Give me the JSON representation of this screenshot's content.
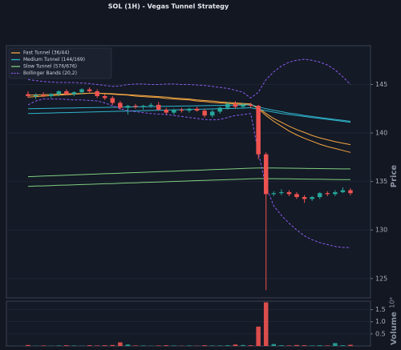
{
  "chart_data": {
    "type": "candlestick",
    "title": "SOL (1H) - Vegas Tunnel Strategy",
    "y_label": "Price",
    "ylim": [
      123,
      149
    ],
    "yticks": [
      125,
      130,
      135,
      140,
      145
    ],
    "grid": true,
    "up_color": "#26a69a",
    "down_color": "#ef5350",
    "legend": "upper left",
    "candles": {
      "open": [
        144.0,
        143.8,
        143.9,
        143.8,
        144.0,
        144.3,
        144.0,
        144.2,
        144.5,
        144.3,
        143.8,
        143.6,
        143.1,
        142.6,
        142.8,
        142.7,
        142.8,
        142.9,
        142.4,
        142.1,
        142.4,
        142.3,
        142.5,
        142.3,
        141.8,
        142.2,
        142.6,
        143.0,
        142.7,
        142.9,
        142.8,
        137.8,
        133.7,
        133.8,
        133.9,
        133.7,
        133.4,
        133.2,
        133.4,
        133.8,
        133.7,
        133.9,
        134.1
      ],
      "high": [
        144.3,
        144.1,
        144.2,
        144.1,
        144.4,
        144.5,
        144.3,
        144.6,
        144.7,
        144.5,
        144.0,
        143.8,
        143.3,
        142.9,
        143.0,
        142.9,
        143.1,
        143.2,
        142.6,
        142.5,
        142.6,
        142.6,
        142.7,
        142.5,
        142.4,
        142.7,
        143.2,
        143.3,
        143.1,
        143.1,
        142.9,
        138.0,
        134.0,
        134.2,
        134.1,
        133.9,
        133.6,
        133.5,
        133.9,
        134.0,
        134.1,
        134.4,
        134.3
      ],
      "low": [
        143.6,
        143.5,
        143.7,
        143.6,
        143.8,
        144.0,
        143.8,
        144.0,
        144.2,
        143.6,
        143.4,
        142.9,
        142.4,
        141.9,
        142.5,
        142.4,
        142.6,
        142.3,
        141.9,
        141.9,
        142.1,
        142.1,
        142.2,
        141.6,
        141.6,
        142.0,
        142.4,
        142.5,
        142.5,
        142.6,
        137.3,
        123.8,
        133.5,
        133.6,
        133.5,
        133.2,
        132.8,
        133.0,
        133.2,
        133.5,
        133.5,
        133.8,
        133.6
      ],
      "close": [
        143.8,
        143.9,
        143.8,
        144.0,
        144.3,
        144.0,
        144.2,
        144.5,
        144.3,
        143.8,
        143.6,
        143.1,
        142.6,
        142.8,
        142.7,
        142.8,
        142.9,
        142.4,
        142.1,
        142.4,
        142.3,
        142.5,
        142.3,
        141.8,
        142.2,
        142.6,
        143.0,
        142.7,
        142.9,
        142.8,
        137.8,
        133.7,
        133.8,
        133.9,
        133.7,
        133.4,
        133.2,
        133.4,
        133.8,
        133.7,
        133.9,
        134.1,
        133.8
      ]
    },
    "indicators": [
      {
        "name": "Fast Tunnel (36/44)",
        "color": "#f5a742",
        "dashed": false,
        "values": [
          [
            143.7,
            143.75,
            143.8,
            143.85,
            143.9,
            143.95,
            144.0,
            144.05,
            144.1,
            144.1,
            144.05,
            144.0,
            143.95,
            143.9,
            143.8,
            143.75,
            143.7,
            143.65,
            143.55,
            143.5,
            143.45,
            143.4,
            143.3,
            143.25,
            143.15,
            143.1,
            143.05,
            143.0,
            142.95,
            142.9,
            142.6,
            142.0,
            141.5,
            141.1,
            140.7,
            140.35,
            140.05,
            139.75,
            139.5,
            139.3,
            139.1,
            138.95,
            138.8
          ],
          [
            143.9,
            143.92,
            143.95,
            143.97,
            144.0,
            144.02,
            144.05,
            144.07,
            144.1,
            144.1,
            144.08,
            144.05,
            144.0,
            143.95,
            143.9,
            143.85,
            143.8,
            143.75,
            143.7,
            143.6,
            143.55,
            143.5,
            143.4,
            143.35,
            143.3,
            143.2,
            143.15,
            143.1,
            143.05,
            143.0,
            142.5,
            141.8,
            141.2,
            140.7,
            140.2,
            139.8,
            139.45,
            139.15,
            138.85,
            138.6,
            138.4,
            138.2,
            138.0
          ]
        ]
      },
      {
        "name": "Medium Tunnel (144/169)",
        "color": "#2fb4cc",
        "dashed": false,
        "values": [
          [
            142.5,
            142.51,
            142.53,
            142.54,
            142.56,
            142.57,
            142.58,
            142.6,
            142.61,
            142.62,
            142.64,
            142.65,
            142.67,
            142.68,
            142.69,
            142.71,
            142.72,
            142.73,
            142.75,
            142.76,
            142.78,
            142.79,
            142.8,
            142.82,
            142.83,
            142.84,
            142.86,
            142.87,
            142.88,
            142.9,
            142.7,
            142.5,
            142.35,
            142.2,
            142.05,
            141.95,
            141.8,
            141.7,
            141.6,
            141.5,
            141.4,
            141.3,
            141.2
          ],
          [
            142.0,
            142.02,
            142.04,
            142.06,
            142.08,
            142.1,
            142.12,
            142.14,
            142.16,
            142.18,
            142.2,
            142.22,
            142.24,
            142.26,
            142.28,
            142.3,
            142.32,
            142.34,
            142.36,
            142.38,
            142.4,
            142.42,
            142.44,
            142.46,
            142.48,
            142.5,
            142.52,
            142.54,
            142.56,
            142.6,
            142.45,
            142.3,
            142.15,
            142.0,
            141.9,
            141.8,
            141.7,
            141.6,
            141.5,
            141.4,
            141.3,
            141.2,
            141.1
          ]
        ]
      },
      {
        "name": "Slow Tunnel (576/676)",
        "color": "#7fce7f",
        "dashed": false,
        "values": [
          [
            135.5,
            135.53,
            135.56,
            135.59,
            135.62,
            135.65,
            135.68,
            135.71,
            135.74,
            135.77,
            135.8,
            135.83,
            135.86,
            135.89,
            135.92,
            135.95,
            135.98,
            136.01,
            136.04,
            136.07,
            136.1,
            136.13,
            136.16,
            136.19,
            136.22,
            136.25,
            136.28,
            136.31,
            136.34,
            136.37,
            136.4,
            136.4,
            136.39,
            136.38,
            136.37,
            136.36,
            136.35,
            136.34,
            136.33,
            136.32,
            136.31,
            136.3,
            136.3
          ],
          [
            134.5,
            134.53,
            134.55,
            134.58,
            134.61,
            134.63,
            134.66,
            134.69,
            134.71,
            134.74,
            134.77,
            134.79,
            134.82,
            134.85,
            134.87,
            134.9,
            134.93,
            134.95,
            134.98,
            135.01,
            135.03,
            135.06,
            135.09,
            135.11,
            135.14,
            135.17,
            135.19,
            135.22,
            135.25,
            135.27,
            135.3,
            135.3,
            135.29,
            135.28,
            135.27,
            135.26,
            135.25,
            135.24,
            135.23,
            135.22,
            135.21,
            135.2,
            135.2
          ]
        ]
      },
      {
        "name": "Bollinger Bands (20,2)",
        "color": "#8a5cf0",
        "dashed": true,
        "values": [
          [
            145.5,
            145.4,
            145.3,
            145.25,
            145.2,
            145.2,
            145.2,
            145.15,
            145.1,
            145.0,
            144.9,
            144.8,
            144.85,
            145.0,
            145.05,
            145.05,
            145.0,
            145.0,
            145.05,
            145.05,
            145.0,
            145.0,
            144.95,
            144.9,
            144.8,
            144.7,
            144.6,
            144.4,
            144.2,
            143.6,
            144.2,
            145.5,
            146.3,
            146.9,
            147.3,
            147.5,
            147.6,
            147.5,
            147.3,
            147.0,
            146.5,
            145.8,
            145.0
          ],
          [
            142.9,
            143.3,
            143.5,
            143.5,
            143.5,
            143.45,
            143.4,
            143.4,
            143.35,
            143.3,
            143.1,
            142.8,
            142.5,
            142.3,
            142.2,
            142.1,
            142.0,
            141.95,
            141.9,
            141.8,
            141.7,
            141.6,
            141.5,
            141.4,
            141.35,
            141.4,
            141.6,
            141.8,
            141.9,
            142.0,
            138.0,
            134.5,
            132.5,
            131.5,
            130.7,
            130.0,
            129.4,
            129.0,
            128.7,
            128.5,
            128.3,
            128.2,
            128.2
          ]
        ]
      }
    ],
    "volume": {
      "label": "Volume",
      "exponent_label": "10⁶",
      "ylim": [
        0,
        1.85
      ],
      "yticks": [
        0.5,
        {
          "value": 1,
          "label": "1.0"
        },
        1.5
      ],
      "values": [
        0.04,
        0.01,
        0.02,
        0.01,
        0.02,
        0.03,
        0.02,
        0.01,
        0.03,
        0.02,
        0.03,
        0.04,
        0.15,
        0.06,
        0.02,
        0.02,
        0.01,
        0.02,
        0.03,
        0.02,
        0.01,
        0.02,
        0.01,
        0.03,
        0.02,
        0.02,
        0.03,
        0.06,
        0.04,
        0.03,
        0.8,
        1.8,
        0.08,
        0.03,
        0.02,
        0.04,
        0.03,
        0.02,
        0.03,
        0.02,
        0.12,
        0.03,
        0.05
      ]
    }
  }
}
